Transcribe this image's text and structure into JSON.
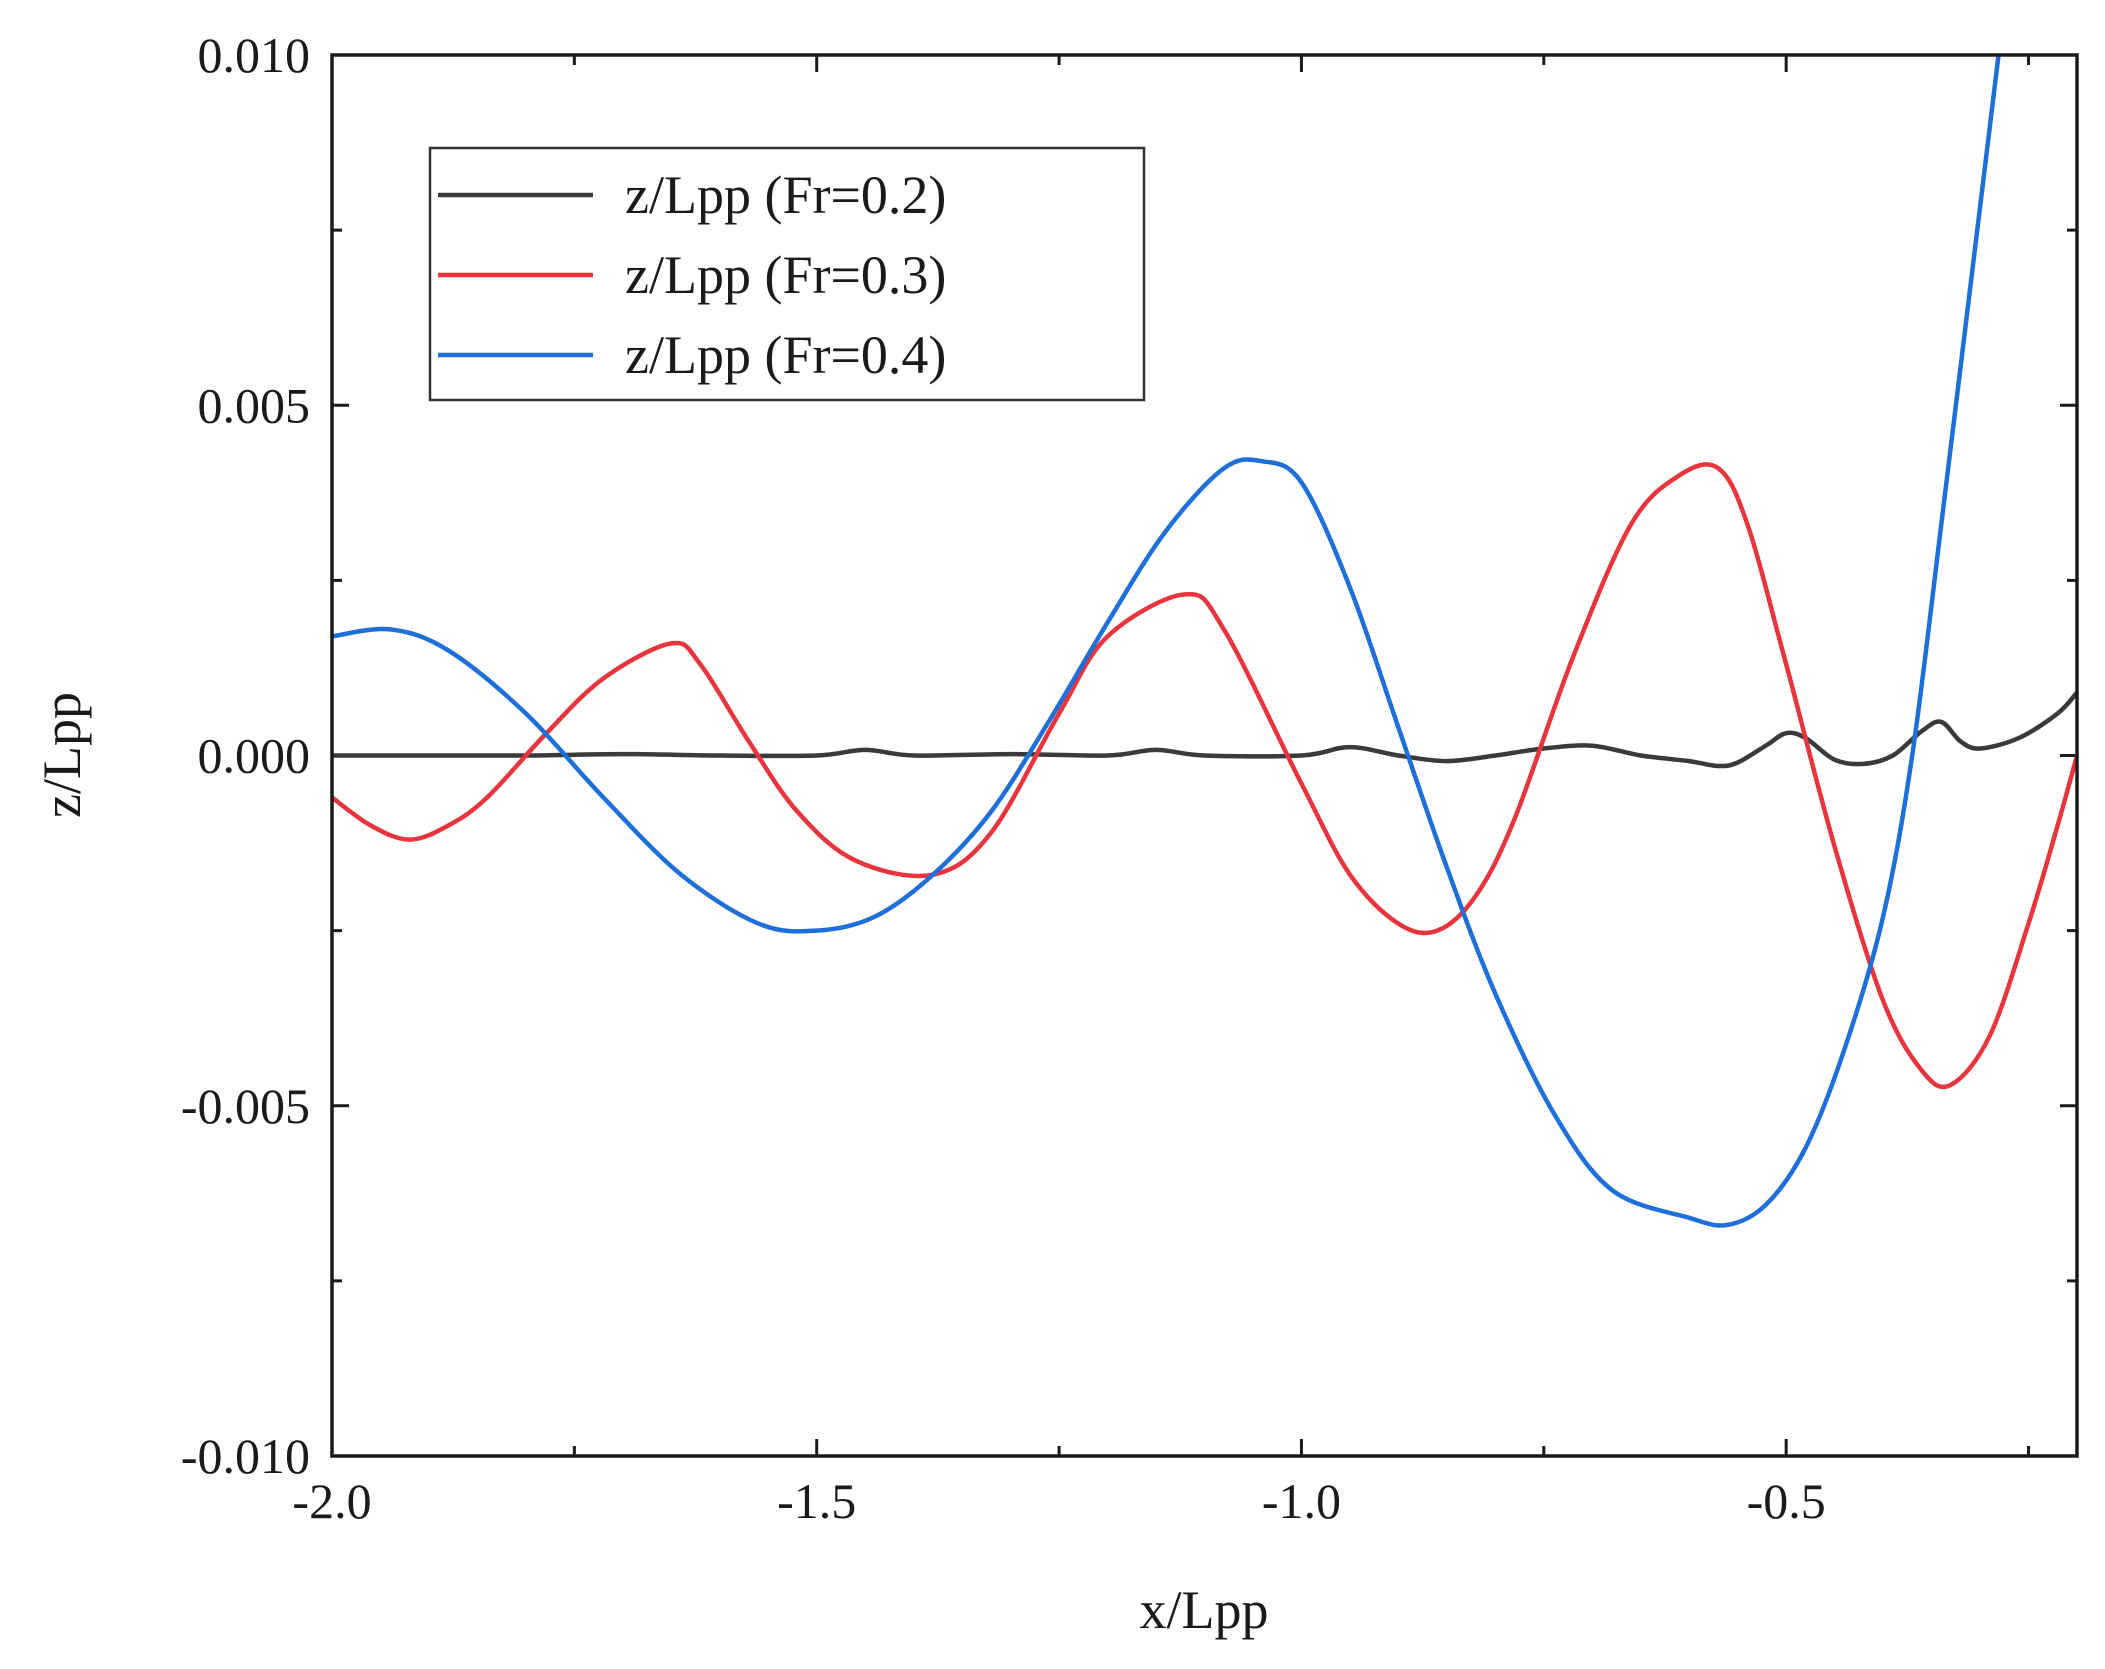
{
  "chart_data": {
    "type": "line",
    "title": "",
    "xlabel": "x/Lpp",
    "ylabel": "z/Lpp",
    "xlim": [
      -2.0,
      -0.2
    ],
    "ylim": [
      -0.01,
      0.01
    ],
    "x_ticks": [
      {
        "value": -2.0,
        "label": "-2.0"
      },
      {
        "value": -1.5,
        "label": "-1.5"
      },
      {
        "value": -1.0,
        "label": "-1.0"
      },
      {
        "value": -0.5,
        "label": "-0.5"
      }
    ],
    "y_ticks": [
      {
        "value": 0.01,
        "label": "0.010"
      },
      {
        "value": 0.005,
        "label": "0.005"
      },
      {
        "value": 0.0,
        "label": "0.000"
      },
      {
        "value": -0.005,
        "label": "-0.005"
      },
      {
        "value": -0.01,
        "label": "-0.010"
      }
    ],
    "grid": false,
    "legend_position": "top-left",
    "series": [
      {
        "name": "z/Lpp (Fr=0.2)",
        "color": "#3a3a3a",
        "points": [
          [
            -2.0,
            0.0
          ],
          [
            -1.9,
            0.0
          ],
          [
            -1.8,
            0.0
          ],
          [
            -1.7,
            2e-05
          ],
          [
            -1.6,
            0.0
          ],
          [
            -1.5,
            0.0
          ],
          [
            -1.45,
            8e-05
          ],
          [
            -1.4,
            0.0
          ],
          [
            -1.3,
            2e-05
          ],
          [
            -1.2,
            0.0
          ],
          [
            -1.15,
            8e-05
          ],
          [
            -1.1,
            0.0
          ],
          [
            -1.0,
            0.0
          ],
          [
            -0.95,
            0.00012
          ],
          [
            -0.9,
            0.0
          ],
          [
            -0.85,
            -8e-05
          ],
          [
            -0.8,
            0.0
          ],
          [
            -0.75,
            0.0001
          ],
          [
            -0.7,
            0.00014
          ],
          [
            -0.65,
            0.0
          ],
          [
            -0.6,
            -8e-05
          ],
          [
            -0.57,
            -0.00015
          ],
          [
            -0.55,
            -0.0001
          ],
          [
            -0.52,
            0.00015
          ],
          [
            -0.5,
            0.00032
          ],
          [
            -0.48,
            0.00025
          ],
          [
            -0.45,
            -6e-05
          ],
          [
            -0.42,
            -0.00012
          ],
          [
            -0.39,
            0.0
          ],
          [
            -0.36,
            0.00035
          ],
          [
            -0.34,
            0.00048
          ],
          [
            -0.32,
            0.0002
          ],
          [
            -0.3,
            0.0001
          ],
          [
            -0.26,
            0.00025
          ],
          [
            -0.22,
            0.0006
          ],
          [
            -0.2,
            0.0009
          ]
        ]
      },
      {
        "name": "z/Lpp (Fr=0.3)",
        "color": "#e8343c",
        "points": [
          [
            -2.0,
            -0.0006
          ],
          [
            -1.96,
            -0.001
          ],
          [
            -1.92,
            -0.0012
          ],
          [
            -1.88,
            -0.001
          ],
          [
            -1.84,
            -0.0006
          ],
          [
            -1.78,
            0.0003
          ],
          [
            -1.72,
            0.0011
          ],
          [
            -1.65,
            0.0016
          ],
          [
            -1.62,
            0.0013
          ],
          [
            -1.57,
            0.0002
          ],
          [
            -1.52,
            -0.0008
          ],
          [
            -1.46,
            -0.0015
          ],
          [
            -1.38,
            -0.0017
          ],
          [
            -1.32,
            -0.0011
          ],
          [
            -1.25,
            0.0006
          ],
          [
            -1.2,
            0.0017
          ],
          [
            -1.12,
            0.0023
          ],
          [
            -1.08,
            0.0018
          ],
          [
            -1.0,
            -0.0004
          ],
          [
            -0.95,
            -0.0017
          ],
          [
            -0.9,
            -0.0024
          ],
          [
            -0.86,
            -0.0025
          ],
          [
            -0.82,
            -0.002
          ],
          [
            -0.78,
            -0.0009
          ],
          [
            -0.72,
            0.0014
          ],
          [
            -0.66,
            0.0033
          ],
          [
            -0.61,
            0.004
          ],
          [
            -0.57,
            0.0041
          ],
          [
            -0.54,
            0.0033
          ],
          [
            -0.5,
            0.0013
          ],
          [
            -0.45,
            -0.0013
          ],
          [
            -0.4,
            -0.0035
          ],
          [
            -0.36,
            -0.0045
          ],
          [
            -0.33,
            -0.0047
          ],
          [
            -0.29,
            -0.004
          ],
          [
            -0.25,
            -0.0024
          ],
          [
            -0.22,
            -0.001
          ],
          [
            -0.2,
            0.0
          ]
        ]
      },
      {
        "name": "z/Lpp (Fr=0.4)",
        "color": "#1e6fd9",
        "points": [
          [
            -2.0,
            0.0017
          ],
          [
            -1.94,
            0.0018
          ],
          [
            -1.88,
            0.0015
          ],
          [
            -1.8,
            0.0006
          ],
          [
            -1.72,
            -0.0006
          ],
          [
            -1.64,
            -0.0017
          ],
          [
            -1.56,
            -0.0024
          ],
          [
            -1.5,
            -0.0025
          ],
          [
            -1.44,
            -0.0023
          ],
          [
            -1.38,
            -0.0017
          ],
          [
            -1.32,
            -0.0008
          ],
          [
            -1.26,
            0.0005
          ],
          [
            -1.2,
            0.0019
          ],
          [
            -1.14,
            0.0032
          ],
          [
            -1.08,
            0.0041
          ],
          [
            -1.04,
            0.0042
          ],
          [
            -1.0,
            0.0039
          ],
          [
            -0.95,
            0.0024
          ],
          [
            -0.9,
            0.0004
          ],
          [
            -0.85,
            -0.0016
          ],
          [
            -0.8,
            -0.0034
          ],
          [
            -0.74,
            -0.0051
          ],
          [
            -0.68,
            -0.0062
          ],
          [
            -0.6,
            -0.0066
          ],
          [
            -0.56,
            -0.0067
          ],
          [
            -0.52,
            -0.0064
          ],
          [
            -0.48,
            -0.0056
          ],
          [
            -0.44,
            -0.0042
          ],
          [
            -0.4,
            -0.0023
          ],
          [
            -0.37,
            0.0
          ],
          [
            -0.34,
            0.0033
          ],
          [
            -0.31,
            0.0067
          ],
          [
            -0.28,
            0.0101
          ]
        ]
      }
    ]
  }
}
